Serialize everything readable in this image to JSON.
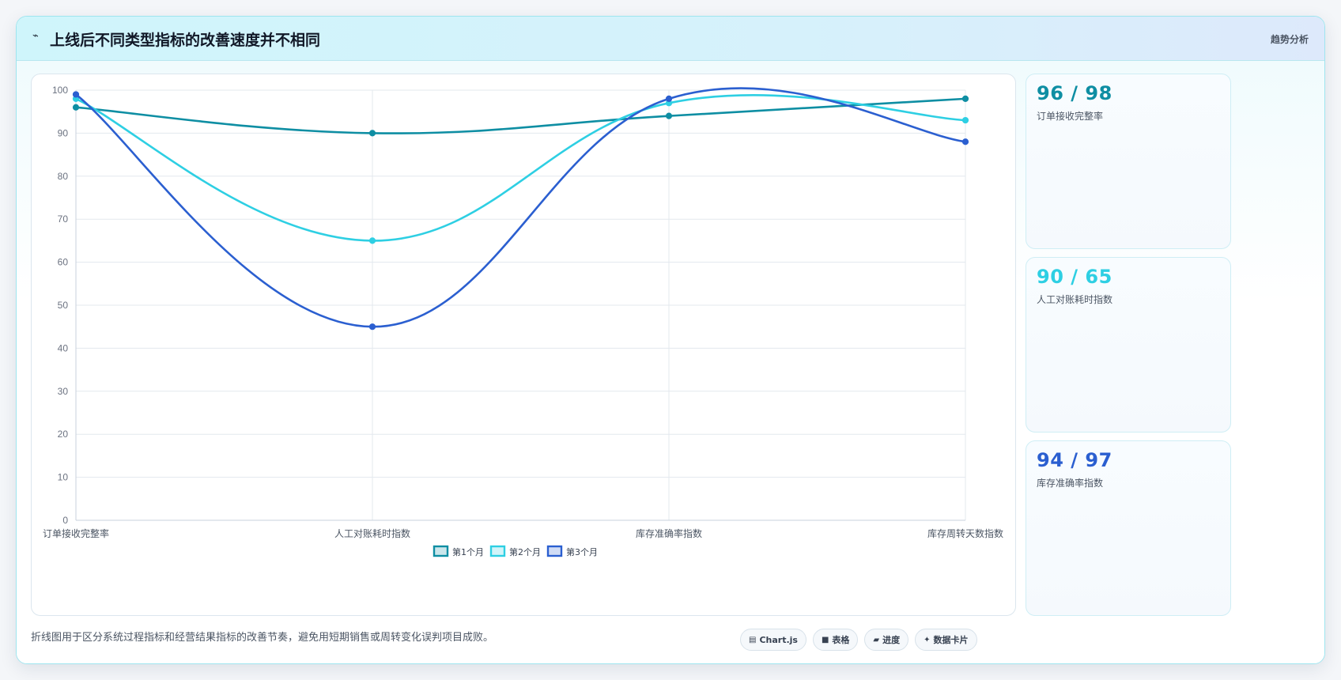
{
  "header": {
    "icon": "sparkline-icon",
    "title": "上线后不同类型指标的改善速度并不相同",
    "tag": "趋势分析"
  },
  "chart_data": {
    "type": "line",
    "categories": [
      "订单接收完整率",
      "人工对账耗时指数",
      "库存准确率指数",
      "库存周转天数指数"
    ],
    "series": [
      {
        "name": "第1个月",
        "values": [
          96,
          90,
          94,
          98
        ],
        "color": "#0e8ea3"
      },
      {
        "name": "第2个月",
        "values": [
          98,
          65,
          97,
          93
        ],
        "color": "#2ecfe3"
      },
      {
        "name": "第3个月",
        "values": [
          99,
          45,
          98,
          88
        ],
        "color": "#2b5fd0"
      }
    ],
    "ylim": [
      0,
      100
    ],
    "yticks": [
      0,
      10,
      20,
      30,
      40,
      50,
      60,
      70,
      80,
      90,
      100
    ],
    "grid": true,
    "legend_position": "bottom"
  },
  "stats": [
    {
      "value": "96 / 98",
      "label": "订单接收完整率",
      "color": "#0e8ea3"
    },
    {
      "value": "90 / 65",
      "label": "人工对账耗时指数",
      "color": "#2ecfe3"
    },
    {
      "value": "94 / 97",
      "label": "库存准确率指数",
      "color": "#2b5fd0"
    }
  ],
  "footer": {
    "note": "折线图用于区分系统过程指标和经营结果指标的改善节奏，避免用短期销售或周转变化误判项目成败。",
    "chips": [
      {
        "icon": "chart-icon",
        "glyph": "▤",
        "label": "Chart.js"
      },
      {
        "icon": "table-icon",
        "glyph": "■",
        "label": "表格"
      },
      {
        "icon": "progress-icon",
        "glyph": "▰",
        "label": "进度"
      },
      {
        "icon": "card-icon",
        "glyph": "✦",
        "label": "数据卡片"
      }
    ]
  }
}
